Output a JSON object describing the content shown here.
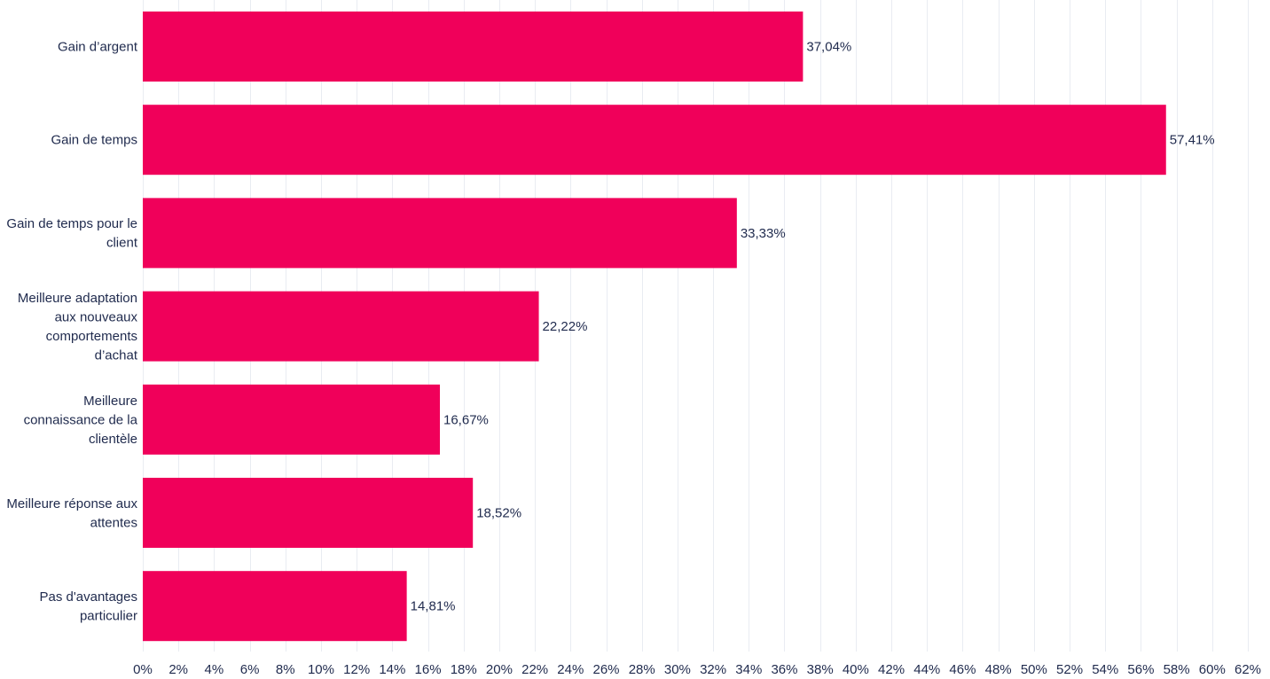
{
  "chart_data": {
    "type": "bar",
    "orientation": "horizontal",
    "categories": [
      "Gain d’argent",
      "Gain de temps",
      "Gain de temps pour le client",
      "Meilleure adaptation aux nouveaux comportements d’achat",
      "Meilleure connaissance de la clientèle",
      "Meilleure réponse aux attentes",
      "Pas d'avantages particulier"
    ],
    "category_lines": [
      [
        "Gain d’argent"
      ],
      [
        "Gain de temps"
      ],
      [
        "Gain de temps pour le",
        "client"
      ],
      [
        "Meilleure adaptation",
        "aux nouveaux",
        "comportements",
        "d’achat"
      ],
      [
        "Meilleure",
        "connaissance de la",
        "clientèle"
      ],
      [
        "Meilleure réponse aux",
        "attentes"
      ],
      [
        "Pas d'avantages",
        "particulier"
      ]
    ],
    "values": [
      37.04,
      57.41,
      33.33,
      22.22,
      16.67,
      18.52,
      14.81
    ],
    "value_labels": [
      "37,04%",
      "57,41%",
      "33,33%",
      "22,22%",
      "16,67%",
      "18,52%",
      "14,81%"
    ],
    "xlim": [
      0,
      62
    ],
    "x_ticks": [
      0,
      2,
      4,
      6,
      8,
      10,
      12,
      14,
      16,
      18,
      20,
      22,
      24,
      26,
      28,
      30,
      32,
      34,
      36,
      38,
      40,
      42,
      44,
      46,
      48,
      50,
      52,
      54,
      56,
      58,
      60,
      62
    ],
    "x_tick_labels": [
      "0%",
      "2%",
      "4%",
      "6%",
      "8%",
      "10%",
      "12%",
      "14%",
      "16%",
      "18%",
      "20%",
      "22%",
      "24%",
      "26%",
      "28%",
      "30%",
      "32%",
      "34%",
      "36%",
      "38%",
      "40%",
      "42%",
      "44%",
      "46%",
      "48%",
      "50%",
      "52%",
      "54%",
      "56%",
      "58%",
      "60%",
      "62%"
    ],
    "title": "",
    "xlabel": "",
    "ylabel": "",
    "grid": true,
    "legend": "none",
    "bar_color": "#f0005a",
    "text_color": "#1f2a4d",
    "grid_color": "#e9ecf2"
  }
}
